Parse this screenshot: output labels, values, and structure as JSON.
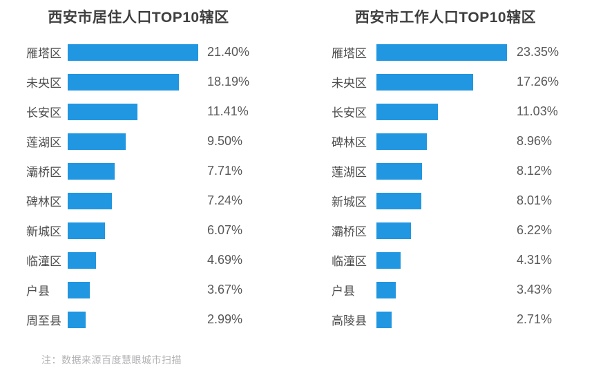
{
  "page": {
    "note": "注：数据来源百度慧眼城市扫描",
    "bar_color": "#2196E1"
  },
  "chart_data": [
    {
      "type": "bar",
      "orientation": "horizontal",
      "title": "西安市居住人口TOP10辖区",
      "categories": [
        "雁塔区",
        "未央区",
        "长安区",
        "莲湖区",
        "灞桥区",
        "碑林区",
        "新城区",
        "临潼区",
        "户县",
        "周至县"
      ],
      "values": [
        21.4,
        18.19,
        11.41,
        9.5,
        7.71,
        7.24,
        6.07,
        4.69,
        3.67,
        2.99
      ],
      "value_labels": [
        "21.40%",
        "18.19%",
        "11.41%",
        "9.50%",
        "7.71%",
        "7.24%",
        "6.07%",
        "4.69%",
        "3.67%",
        "2.99%"
      ],
      "unit": "%",
      "xlim": [
        0,
        21.4
      ],
      "grid": false,
      "legend": null
    },
    {
      "type": "bar",
      "orientation": "horizontal",
      "title": "西安市工作人口TOP10辖区",
      "categories": [
        "雁塔区",
        "未央区",
        "长安区",
        "碑林区",
        "莲湖区",
        "新城区",
        "灞桥区",
        "临潼区",
        "户县",
        "高陵县"
      ],
      "values": [
        23.35,
        17.26,
        11.03,
        8.96,
        8.12,
        8.01,
        6.22,
        4.31,
        3.43,
        2.71
      ],
      "value_labels": [
        "23.35%",
        "17.26%",
        "11.03%",
        "8.96%",
        "8.12%",
        "8.01%",
        "6.22%",
        "4.31%",
        "3.43%",
        "2.71%"
      ],
      "unit": "%",
      "xlim": [
        0,
        23.35
      ],
      "grid": false,
      "legend": null
    }
  ]
}
